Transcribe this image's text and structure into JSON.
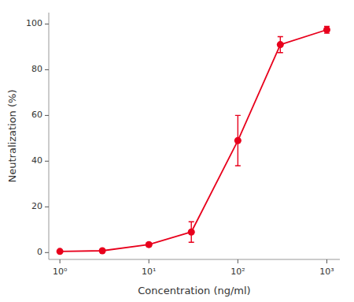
{
  "chart_data": {
    "type": "line",
    "x": [
      1,
      3,
      10,
      30,
      100,
      300,
      1000
    ],
    "values": [
      0.5,
      0.8,
      3.5,
      9.0,
      49.0,
      91.0,
      97.5
    ],
    "errors": [
      0.5,
      0.5,
      0.8,
      4.5,
      11.0,
      3.5,
      1.5
    ],
    "color": "#e8001c",
    "marker": "circle",
    "xlabel": "Concentration (ng/ml)",
    "ylabel": "Neutralization (%)",
    "xlim": [
      0.75,
      1400
    ],
    "ylim": [
      -3,
      105
    ],
    "yticks": [
      0,
      20,
      40,
      60,
      80,
      100
    ],
    "xticks": [
      {
        "value": 1,
        "label": "10⁰"
      },
      {
        "value": 10,
        "label": "10¹"
      },
      {
        "value": 100,
        "label": "10²"
      },
      {
        "value": 1000,
        "label": "10³"
      }
    ],
    "log": "x",
    "grid": false
  }
}
